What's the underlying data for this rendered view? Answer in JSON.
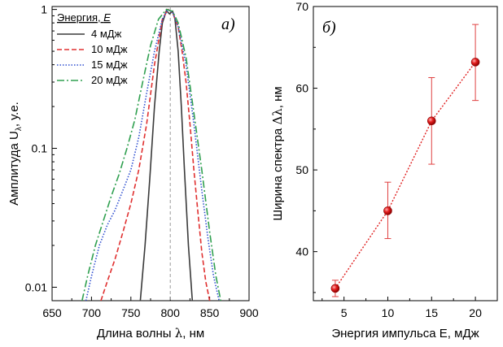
{
  "chart_data": [
    {
      "type": "line",
      "panel_label": "а)",
      "xlabel_prefix": "Длина волны ",
      "xlabel_symbol": "λ",
      "xlabel_suffix": ", нм",
      "ylabel_prefix": "Амплитуда U",
      "ylabel_sub": "λ",
      "ylabel_suffix": ", у.е.",
      "xlim": [
        650,
        900
      ],
      "ylim": [
        0.008,
        1.05
      ],
      "yscale": "log",
      "xticks": [
        650,
        700,
        750,
        800,
        850,
        900
      ],
      "xtick_labels": [
        "650",
        "700",
        "750",
        "800",
        "850",
        "900"
      ],
      "yticks": [
        0.01,
        0.1,
        1
      ],
      "ytick_labels": [
        "0.01",
        "0.1",
        "1"
      ],
      "reference_line_x": 800,
      "legend": {
        "title_prefix": "Энергия, ",
        "title_symbol": "E",
        "position": "top-left"
      },
      "series": [
        {
          "name": "4 мДж",
          "color": "#3a3a3a",
          "style": "solid",
          "x": [
            762,
            768,
            774,
            780,
            786,
            790,
            795,
            799,
            803,
            806,
            810,
            814,
            818,
            823,
            828
          ],
          "y": [
            0.008,
            0.02,
            0.06,
            0.2,
            0.5,
            0.8,
            0.98,
            0.93,
            0.97,
            0.85,
            0.5,
            0.2,
            0.07,
            0.02,
            0.008
          ]
        },
        {
          "name": "10 мДж",
          "color": "#e03030",
          "style": "dashed",
          "x": [
            712,
            720,
            730,
            740,
            750,
            760,
            770,
            780,
            790,
            797,
            803,
            810,
            815,
            820,
            825,
            830,
            835,
            840,
            845,
            850
          ],
          "y": [
            0.008,
            0.011,
            0.016,
            0.025,
            0.04,
            0.07,
            0.15,
            0.4,
            0.85,
            1.0,
            0.95,
            0.75,
            0.5,
            0.3,
            0.15,
            0.07,
            0.035,
            0.018,
            0.011,
            0.008
          ]
        },
        {
          "name": "15 мДж",
          "color": "#3050d0",
          "style": "dotted",
          "x": [
            693,
            700,
            710,
            720,
            730,
            740,
            750,
            760,
            770,
            780,
            790,
            797,
            803,
            810,
            820,
            830,
            840,
            848,
            855,
            862
          ],
          "y": [
            0.008,
            0.012,
            0.02,
            0.028,
            0.036,
            0.05,
            0.07,
            0.12,
            0.25,
            0.5,
            0.85,
            1.0,
            0.95,
            0.75,
            0.4,
            0.15,
            0.05,
            0.022,
            0.012,
            0.008
          ]
        },
        {
          "name": "20 мДж",
          "color": "#30a050",
          "style": "dashdot",
          "x": [
            688,
            695,
            705,
            715,
            725,
            735,
            745,
            755,
            765,
            775,
            785,
            795,
            803,
            810,
            820,
            830,
            840,
            850,
            858,
            864
          ],
          "y": [
            0.008,
            0.012,
            0.02,
            0.03,
            0.045,
            0.065,
            0.1,
            0.16,
            0.3,
            0.55,
            0.85,
            1.0,
            0.97,
            0.8,
            0.45,
            0.18,
            0.07,
            0.025,
            0.012,
            0.008
          ]
        }
      ]
    },
    {
      "type": "scatter",
      "panel_label": "б)",
      "xlabel": "Энергия импульса Е, мДж",
      "ylabel_prefix": "Ширина спектра ",
      "ylabel_symbol": "Δλ",
      "ylabel_suffix": ", нм",
      "xlim": [
        1.5,
        22.5
      ],
      "ylim": [
        34,
        70
      ],
      "xticks": [
        5,
        10,
        15,
        20
      ],
      "xtick_labels": [
        "5",
        "10",
        "15",
        "20"
      ],
      "yticks": [
        40,
        50,
        60,
        70
      ],
      "ytick_labels": [
        "40",
        "50",
        "60",
        "70"
      ],
      "series": [
        {
          "color": "#e02020",
          "style": "dotted-line-with-markers",
          "x": [
            4,
            10,
            15,
            20
          ],
          "y": [
            35.5,
            45.0,
            56.0,
            63.2
          ],
          "err_low": [
            1.0,
            3.4,
            5.3,
            4.7
          ],
          "err_high": [
            1.0,
            3.5,
            5.3,
            4.6
          ]
        }
      ]
    }
  ]
}
